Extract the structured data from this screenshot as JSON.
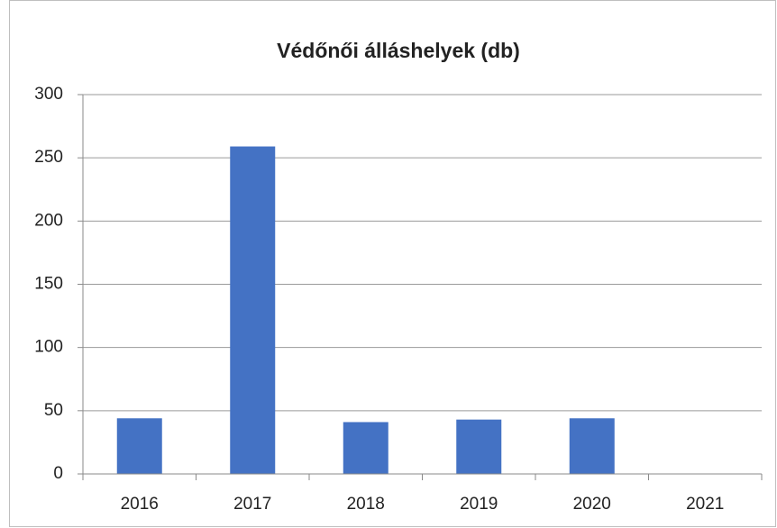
{
  "chart_data": {
    "type": "bar",
    "title": "Védőnői álláshelyek (db)",
    "categories": [
      "2016",
      "2017",
      "2018",
      "2019",
      "2020",
      "2021"
    ],
    "values": [
      44,
      259,
      41,
      43,
      44,
      0
    ],
    "color": "#4472c4",
    "ylim": [
      0,
      300
    ],
    "yticks": [
      0,
      50,
      100,
      150,
      200,
      250,
      300
    ],
    "grid": true
  }
}
